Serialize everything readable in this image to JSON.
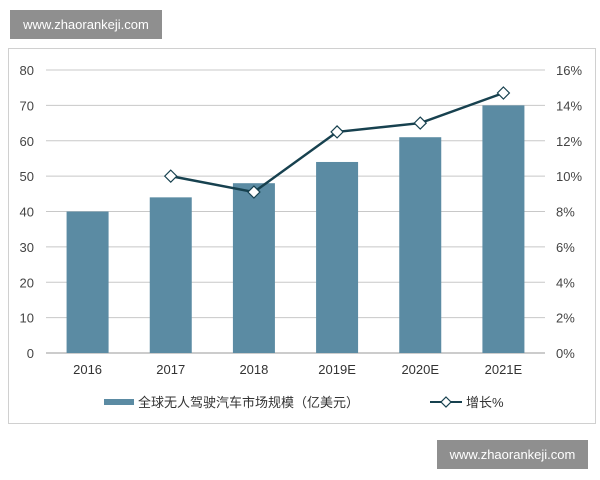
{
  "watermarks": [
    "www.zhaorankeji.com",
    "www.zhaorankeji.com"
  ],
  "colors": {
    "bar": "#5b8ba3",
    "line": "#17414f",
    "grid": "#c8c8c8"
  },
  "chart_data": {
    "type": "bar+line",
    "categories": [
      "2016",
      "2017",
      "2018",
      "2019E",
      "2020E",
      "2021E"
    ],
    "series": [
      {
        "name": "全球无人驾驶汽车市场规模（亿美元）",
        "type": "bar",
        "axis": "left",
        "values": [
          40,
          44,
          48,
          54,
          61,
          70
        ]
      },
      {
        "name": "增长%",
        "type": "line",
        "axis": "right",
        "marker": "diamond",
        "values": [
          null,
          10.0,
          9.1,
          12.5,
          13.0,
          14.7
        ]
      }
    ],
    "y_left": {
      "range": [
        0,
        80
      ],
      "ticks": [
        "0",
        "10",
        "20",
        "30",
        "40",
        "50",
        "60",
        "70",
        "80"
      ]
    },
    "y_right": {
      "range": [
        0,
        16
      ],
      "ticks": [
        "0%",
        "2%",
        "4%",
        "6%",
        "8%",
        "10%",
        "12%",
        "14%",
        "16%"
      ]
    },
    "grid": true,
    "legend": "bottom"
  }
}
